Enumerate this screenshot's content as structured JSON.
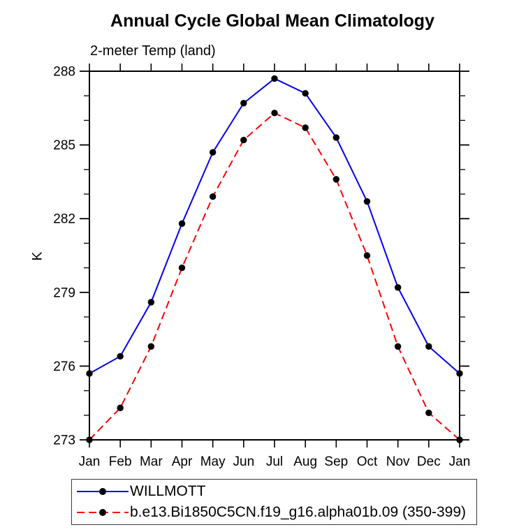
{
  "chart_data": {
    "type": "line",
    "title": "Annual Cycle Global Mean Climatology",
    "subtitle": "2-meter Temp (land)",
    "ylabel": "K",
    "xlabel": "",
    "categories": [
      "Jan",
      "Feb",
      "Mar",
      "Apr",
      "May",
      "Jun",
      "Jul",
      "Aug",
      "Sep",
      "Oct",
      "Nov",
      "Dec",
      "Jan"
    ],
    "ylim": [
      273,
      288
    ],
    "ytick_major": [
      273,
      276,
      279,
      282,
      285,
      288
    ],
    "ytick_minor_step": 1,
    "grid": false,
    "legend_position": "bottom",
    "axis_color": "#000000",
    "marker": "filled-circle",
    "marker_color": "#000000",
    "series": [
      {
        "name": "WILLMOTT",
        "color": "#0000ee",
        "line_style": "solid",
        "values": [
          275.7,
          276.4,
          278.6,
          281.8,
          284.7,
          286.7,
          287.7,
          287.1,
          285.3,
          282.7,
          279.2,
          276.8,
          275.7
        ]
      },
      {
        "name": "b.e13.Bi1850C5CN.f19_g16.alpha01b.09 (350-399)",
        "color": "#ff0000",
        "line_style": "dashed",
        "values": [
          273.0,
          274.3,
          276.8,
          280.0,
          282.9,
          285.2,
          286.3,
          285.7,
          283.6,
          280.5,
          276.8,
          274.1,
          273.0
        ]
      }
    ]
  }
}
